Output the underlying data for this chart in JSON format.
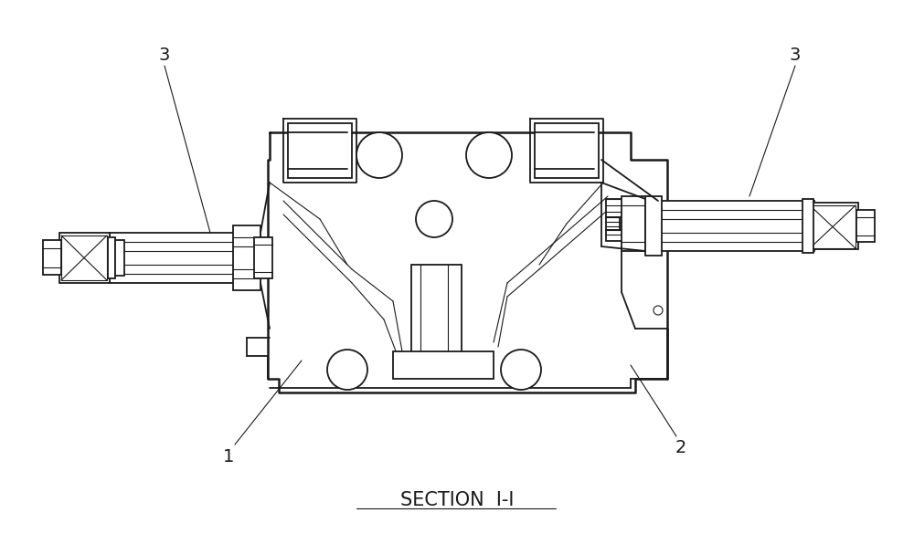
{
  "title": "SECTION  I-I",
  "background_color": "#ffffff",
  "line_color": "#1a1a1a",
  "figsize": [
    10.0,
    5.96
  ],
  "dpi": 100
}
